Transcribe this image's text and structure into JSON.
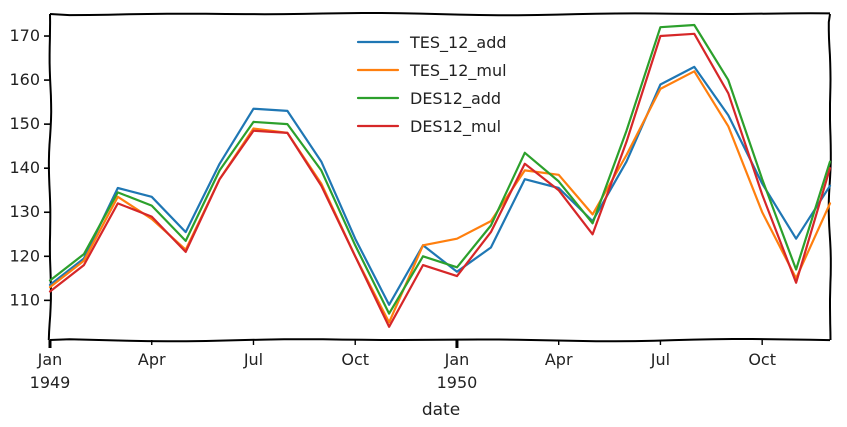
{
  "chart_data": {
    "type": "line",
    "xlabel": "date",
    "ylabel": "",
    "ylim": [
      101,
      175
    ],
    "y_ticks": [
      110,
      120,
      130,
      140,
      150,
      160,
      170
    ],
    "x_tick_labels": [
      {
        "month": "Jan",
        "year": "1949",
        "index": 0
      },
      {
        "month": "Apr",
        "year": "",
        "index": 3
      },
      {
        "month": "Jul",
        "year": "",
        "index": 6
      },
      {
        "month": "Oct",
        "year": "",
        "index": 9
      },
      {
        "month": "Jan",
        "year": "1950",
        "index": 12
      },
      {
        "month": "Apr",
        "year": "",
        "index": 15
      },
      {
        "month": "Jul",
        "year": "",
        "index": 18
      },
      {
        "month": "Oct",
        "year": "",
        "index": 21
      }
    ],
    "x": [
      "1949-01",
      "1949-02",
      "1949-03",
      "1949-04",
      "1949-05",
      "1949-06",
      "1949-07",
      "1949-08",
      "1949-09",
      "1949-10",
      "1949-11",
      "1949-12",
      "1950-01",
      "1950-02",
      "1950-03",
      "1950-04",
      "1950-05",
      "1950-06",
      "1950-07",
      "1950-08",
      "1950-09",
      "1950-10",
      "1950-11",
      "1950-12"
    ],
    "legend_position": "top-center",
    "grid": false,
    "series": [
      {
        "name": "TES_12_add",
        "color": "#1f77b4",
        "values": [
          113.5,
          119.5,
          135.5,
          133.5,
          125.5,
          141.0,
          153.5,
          153.0,
          141.5,
          124.0,
          109.0,
          122.5,
          116.5,
          122.0,
          137.5,
          135.5,
          128.0,
          141.5,
          159.0,
          163.0,
          152.0,
          136.5,
          124.0,
          136.0
        ]
      },
      {
        "name": "TES_12_mul",
        "color": "#ff7f0e",
        "values": [
          113.0,
          119.0,
          133.5,
          128.5,
          121.5,
          137.5,
          149.0,
          148.0,
          136.5,
          120.0,
          105.0,
          122.5,
          124.0,
          128.0,
          139.5,
          138.5,
          129.5,
          143.0,
          158.0,
          162.0,
          149.5,
          130.0,
          115.0,
          132.0
        ]
      },
      {
        "name": "DES12_add",
        "color": "#2ca02c",
        "values": [
          114.5,
          120.5,
          134.5,
          131.5,
          123.5,
          139.5,
          150.5,
          150.0,
          139.5,
          122.5,
          107.0,
          120.0,
          117.5,
          127.0,
          143.5,
          137.0,
          127.5,
          148.5,
          172.0,
          172.5,
          160.0,
          137.5,
          117.0,
          141.5
        ]
      },
      {
        "name": "DES12_mul",
        "color": "#d62728",
        "values": [
          112.0,
          118.0,
          132.0,
          129.0,
          121.0,
          137.5,
          148.5,
          148.0,
          136.0,
          120.0,
          104.0,
          118.0,
          115.5,
          125.5,
          141.0,
          135.0,
          125.0,
          146.0,
          170.0,
          170.5,
          157.0,
          134.0,
          114.0,
          140.0
        ]
      }
    ]
  }
}
